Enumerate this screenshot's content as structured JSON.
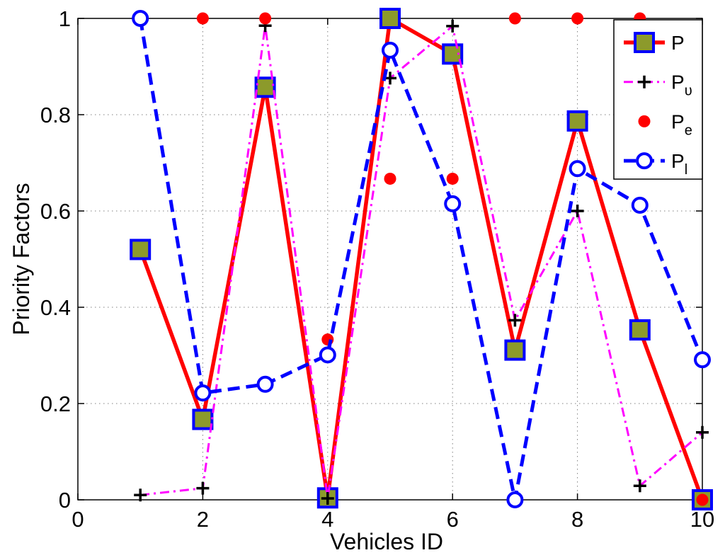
{
  "chart_data": {
    "type": "line",
    "xlabel": "Vehicles ID",
    "ylabel": "Priority Factors",
    "xlim": [
      0,
      10
    ],
    "ylim": [
      0,
      1
    ],
    "xticks": [
      0,
      2,
      4,
      6,
      8,
      10
    ],
    "yticks": [
      0,
      0.2,
      0.4,
      0.6,
      0.8,
      1
    ],
    "grid": true,
    "legend_position": "top-right",
    "x": [
      1,
      2,
      3,
      4,
      5,
      6,
      7,
      8,
      9,
      10
    ],
    "series": [
      {
        "name": "P",
        "line": "solid",
        "color": "#ff0000",
        "marker": "square",
        "marker_edge": "#0000ff",
        "marker_fill": "#8c9a2b",
        "values": [
          0.52,
          0.167,
          0.857,
          0.004,
          1.0,
          0.926,
          0.311,
          0.787,
          0.353,
          0.0
        ]
      },
      {
        "name": "P",
        "name_sub": "υ",
        "line": "dashdot",
        "color": "#ff00ff",
        "marker": "plus",
        "marker_edge": "#000000",
        "values": [
          0.01,
          0.024,
          0.985,
          0.003,
          0.876,
          0.984,
          0.373,
          0.6,
          0.029,
          0.14
        ]
      },
      {
        "name": "P",
        "name_sub": "e",
        "line": "none",
        "color": "#ff0000",
        "marker": "dot",
        "values": [
          1,
          1,
          1,
          0.333,
          0.667,
          0.667,
          1,
          1,
          1,
          0
        ]
      },
      {
        "name": "P",
        "name_sub": "l",
        "line": "dashed",
        "color": "#0000ff",
        "marker": "circle",
        "marker_edge": "#0000ff",
        "marker_fill": "#ffffff",
        "values": [
          1.0,
          0.222,
          0.24,
          0.301,
          0.934,
          0.615,
          0.0,
          0.688,
          0.612,
          0.291
        ]
      }
    ]
  }
}
